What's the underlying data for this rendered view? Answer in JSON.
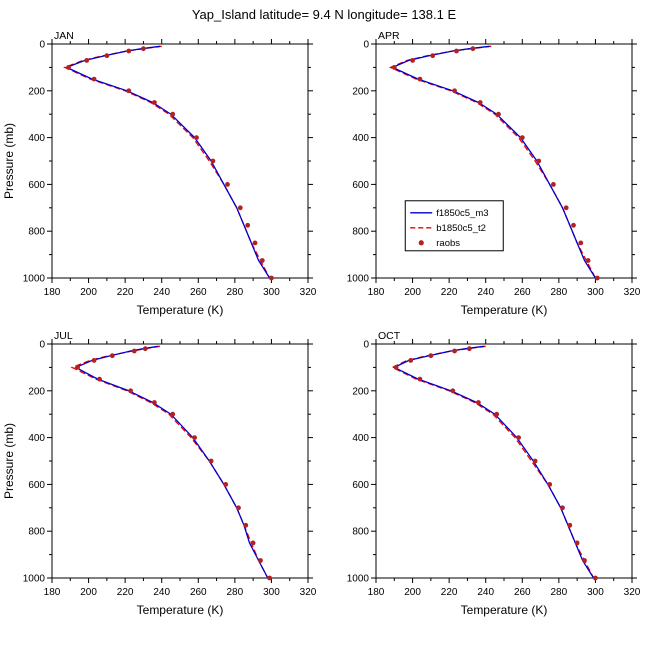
{
  "title": "Yap_Island  latitude= 9.4 N longitude= 138.1 E",
  "axis": {
    "x_label": "Temperature (K)",
    "y_label": "Pressure (mb)"
  },
  "legend": {
    "panel_index": 1,
    "entries": [
      {
        "label": "f1850c5_m3",
        "color": "#0000cd",
        "style": "solid"
      },
      {
        "label": "b1850c5_t2",
        "color": "#ee0000",
        "style": "dashed"
      },
      {
        "label": "raobs",
        "color": "#b22222",
        "style": "marker"
      }
    ]
  },
  "chart_data": [
    {
      "type": "line",
      "title": "JAN",
      "xlabel": "Temperature (K)",
      "ylabel": "Pressure (mb)",
      "xlim": [
        180,
        320
      ],
      "ylim": [
        0,
        1000
      ],
      "x_major_tick": 20,
      "x_minor_tick": 10,
      "y_major_tick": 200,
      "y_minor_tick": 100,
      "y_axis_inverted": true,
      "pressure_mb": [
        10,
        20,
        30,
        50,
        70,
        100,
        150,
        200,
        250,
        300,
        400,
        500,
        600,
        700,
        775,
        850,
        925,
        1000
      ],
      "series": [
        {
          "name": "f1850c5_m3",
          "type": "line",
          "color": "#0000cd",
          "dash": "solid",
          "temperature_k": [
            239,
            229,
            221,
            209,
            198,
            188,
            202,
            221,
            235,
            245,
            258,
            267,
            274,
            281,
            285,
            289,
            293,
            299
          ]
        },
        {
          "name": "b1850c5_t2",
          "type": "line",
          "color": "#ee0000",
          "dash": "dashed",
          "temperature_k": [
            240,
            230,
            221,
            208,
            197,
            187,
            201,
            220,
            234,
            244,
            257,
            266,
            274,
            281,
            285,
            289,
            294,
            299
          ]
        },
        {
          "name": "raobs",
          "type": "scatter",
          "color": "#b22222",
          "pressure_mb": [
            20,
            30,
            50,
            70,
            100,
            150,
            200,
            250,
            300,
            400,
            500,
            600,
            700,
            775,
            850,
            925,
            1000
          ],
          "temperature_k": [
            230,
            222,
            210,
            199,
            189,
            203,
            222,
            236,
            246,
            259,
            268,
            276,
            283,
            287,
            291,
            295,
            300
          ]
        }
      ]
    },
    {
      "type": "line",
      "title": "APR",
      "xlabel": "Temperature (K)",
      "ylabel": "Pressure (mb)",
      "xlim": [
        180,
        320
      ],
      "ylim": [
        0,
        1000
      ],
      "x_major_tick": 20,
      "x_minor_tick": 10,
      "y_major_tick": 200,
      "y_minor_tick": 100,
      "y_axis_inverted": true,
      "pressure_mb": [
        10,
        20,
        30,
        50,
        70,
        100,
        150,
        200,
        250,
        300,
        400,
        500,
        600,
        700,
        775,
        850,
        925,
        1000
      ],
      "series": [
        {
          "name": "f1850c5_m3",
          "type": "line",
          "color": "#0000cd",
          "dash": "solid",
          "temperature_k": [
            242,
            231,
            222,
            209,
            198,
            189,
            203,
            222,
            236,
            246,
            259,
            268,
            275,
            282,
            286,
            290,
            294,
            300
          ]
        },
        {
          "name": "b1850c5_t2",
          "type": "line",
          "color": "#ee0000",
          "dash": "dashed",
          "temperature_k": [
            243,
            232,
            222,
            208,
            197,
            188,
            202,
            221,
            235,
            245,
            258,
            267,
            275,
            282,
            286,
            290,
            295,
            300
          ]
        },
        {
          "name": "raobs",
          "type": "scatter",
          "color": "#b22222",
          "pressure_mb": [
            20,
            30,
            50,
            70,
            100,
            150,
            200,
            250,
            300,
            400,
            500,
            600,
            700,
            775,
            850,
            925,
            1000
          ],
          "temperature_k": [
            233,
            224,
            211,
            200,
            190,
            204,
            223,
            237,
            247,
            260,
            269,
            277,
            284,
            288,
            292,
            296,
            301
          ]
        }
      ]
    },
    {
      "type": "line",
      "title": "JUL",
      "xlabel": "Temperature (K)",
      "ylabel": "Pressure (mb)",
      "xlim": [
        180,
        320
      ],
      "ylim": [
        0,
        1000
      ],
      "x_major_tick": 20,
      "x_minor_tick": 10,
      "y_major_tick": 200,
      "y_minor_tick": 100,
      "y_axis_inverted": true,
      "pressure_mb": [
        10,
        20,
        30,
        50,
        70,
        100,
        150,
        200,
        250,
        300,
        400,
        500,
        600,
        700,
        775,
        850,
        925,
        1000
      ],
      "series": [
        {
          "name": "f1850c5_m3",
          "type": "line",
          "color": "#0000cd",
          "dash": "solid",
          "temperature_k": [
            238,
            230,
            223,
            212,
            202,
            193,
            205,
            222,
            235,
            245,
            257,
            266,
            274,
            281,
            285,
            288,
            293,
            298
          ]
        },
        {
          "name": "b1850c5_t2",
          "type": "line",
          "color": "#ee0000",
          "dash": "dashed",
          "temperature_k": [
            239,
            231,
            224,
            211,
            201,
            191,
            204,
            221,
            234,
            244,
            256,
            266,
            274,
            281,
            285,
            289,
            293,
            298
          ]
        },
        {
          "name": "raobs",
          "type": "scatter",
          "color": "#b22222",
          "pressure_mb": [
            20,
            30,
            50,
            70,
            100,
            150,
            200,
            250,
            300,
            400,
            500,
            600,
            700,
            775,
            850,
            925,
            1000
          ],
          "temperature_k": [
            231,
            225,
            213,
            203,
            194,
            206,
            223,
            236,
            246,
            258,
            267,
            275,
            282,
            286,
            290,
            294,
            299
          ]
        }
      ]
    },
    {
      "type": "line",
      "title": "OCT",
      "xlabel": "Temperature (K)",
      "ylabel": "Pressure (mb)",
      "xlim": [
        180,
        320
      ],
      "ylim": [
        0,
        1000
      ],
      "x_major_tick": 20,
      "x_minor_tick": 10,
      "y_major_tick": 200,
      "y_minor_tick": 100,
      "y_axis_inverted": true,
      "pressure_mb": [
        10,
        20,
        30,
        50,
        70,
        100,
        150,
        200,
        250,
        300,
        400,
        500,
        600,
        700,
        775,
        850,
        925,
        1000
      ],
      "series": [
        {
          "name": "f1850c5_m3",
          "type": "line",
          "color": "#0000cd",
          "dash": "solid",
          "temperature_k": [
            239,
            229,
            221,
            209,
            198,
            190,
            203,
            221,
            235,
            245,
            257,
            266,
            274,
            281,
            285,
            289,
            293,
            299
          ]
        },
        {
          "name": "b1850c5_t2",
          "type": "line",
          "color": "#ee0000",
          "dash": "dashed",
          "temperature_k": [
            240,
            230,
            221,
            208,
            197,
            189,
            202,
            220,
            234,
            244,
            256,
            265,
            274,
            281,
            285,
            289,
            294,
            299
          ]
        },
        {
          "name": "raobs",
          "type": "scatter",
          "color": "#b22222",
          "pressure_mb": [
            20,
            30,
            50,
            70,
            100,
            150,
            200,
            250,
            300,
            400,
            500,
            600,
            700,
            775,
            850,
            925,
            1000
          ],
          "temperature_k": [
            231,
            223,
            210,
            199,
            191,
            204,
            222,
            236,
            246,
            258,
            267,
            275,
            282,
            286,
            290,
            294,
            300
          ]
        }
      ]
    }
  ]
}
